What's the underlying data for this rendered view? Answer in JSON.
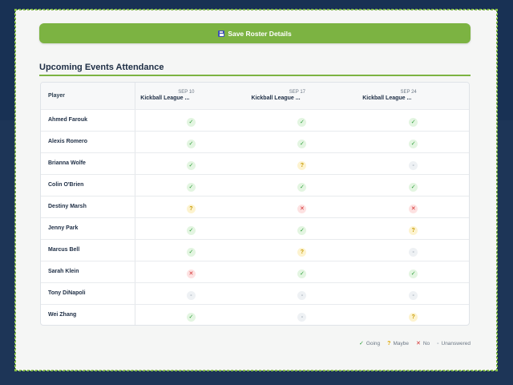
{
  "toolbar": {
    "save_label": "Save Roster Details"
  },
  "section": {
    "title": "Upcoming Events Attendance"
  },
  "table": {
    "player_header": "Player",
    "events": [
      {
        "date": "SEP 10",
        "name": "Kickball League ..."
      },
      {
        "date": "SEP 17",
        "name": "Kickball League ..."
      },
      {
        "date": "SEP 24",
        "name": "Kickball League ..."
      }
    ],
    "rows": [
      {
        "player": "Ahmed Farouk",
        "statuses": [
          "going",
          "going",
          "going"
        ]
      },
      {
        "player": "Alexis Romero",
        "statuses": [
          "going",
          "going",
          "going"
        ]
      },
      {
        "player": "Brianna Wolfe",
        "statuses": [
          "going",
          "maybe",
          "unanswered"
        ]
      },
      {
        "player": "Colin O'Brien",
        "statuses": [
          "going",
          "going",
          "going"
        ]
      },
      {
        "player": "Destiny Marsh",
        "statuses": [
          "maybe",
          "no",
          "no"
        ]
      },
      {
        "player": "Jenny Park",
        "statuses": [
          "going",
          "going",
          "maybe"
        ]
      },
      {
        "player": "Marcus Bell",
        "statuses": [
          "going",
          "maybe",
          "unanswered"
        ]
      },
      {
        "player": "Sarah Klein",
        "statuses": [
          "no",
          "going",
          "going"
        ]
      },
      {
        "player": "Tony DiNapoli",
        "statuses": [
          "unanswered",
          "unanswered",
          "unanswered"
        ]
      },
      {
        "player": "Wei Zhang",
        "statuses": [
          "going",
          "unanswered",
          "maybe"
        ]
      }
    ]
  },
  "status_glyphs": {
    "going": "✓",
    "maybe": "?",
    "no": "✕",
    "unanswered": "-"
  },
  "legend": {
    "going": "Going",
    "maybe": "Maybe",
    "no": "No",
    "unanswered": "Unanswered"
  },
  "colors": {
    "accent": "#7cb342",
    "going": "#2e9e3a",
    "maybe": "#c79a00",
    "no": "#d32f2f",
    "unanswered": "#9aa5b1",
    "background": "#1d3557"
  }
}
